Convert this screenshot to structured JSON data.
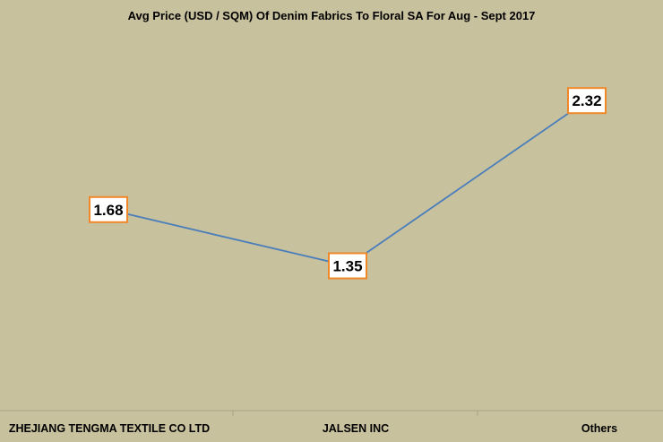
{
  "chart_data": {
    "type": "line",
    "title": "Avg Price (USD / SQM) Of Denim Fabrics To Floral SA For Aug - Sept 2017",
    "xlabel": "",
    "ylabel": "",
    "categories": [
      "ZHEJIANG TENGMA TEXTILE CO LTD",
      "JALSEN INC",
      "Others"
    ],
    "series": [
      {
        "values": [
          1.68,
          1.35,
          2.32
        ],
        "data_labels": [
          "1.68",
          "1.35",
          "2.32"
        ]
      }
    ],
    "ylim": [
      0.5,
      2.7
    ],
    "grid": false,
    "legend": "none"
  },
  "colors": {
    "background": "#c8c19e",
    "line": "#4a7ebb",
    "label_border": "#f0882a",
    "label_fill": "#ffffff",
    "axis": "#a9a383"
  }
}
